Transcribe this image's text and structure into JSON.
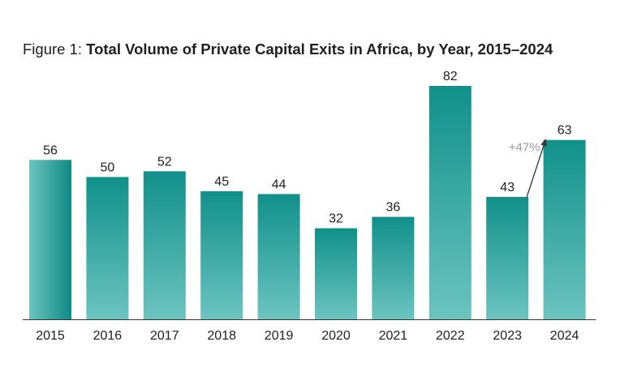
{
  "title": {
    "prefix": "Figure 1: ",
    "main": "Total Volume of Private Capital Exits in Africa, by Year, 2015–2024"
  },
  "colors": {
    "bar_top": "#11908a",
    "bar_bottom": "#6cc4c0",
    "first_bar_left": "#6cc4c0",
    "first_bar_right": "#0f8a84",
    "axis": "#333333",
    "annotation": "#9a9a9a"
  },
  "chart_data": {
    "type": "bar",
    "title": "Total Volume of Private Capital Exits in Africa, by Year, 2015–2024",
    "xlabel": "",
    "ylabel": "",
    "categories": [
      "2015",
      "2016",
      "2017",
      "2018",
      "2019",
      "2020",
      "2021",
      "2022",
      "2023",
      "2024"
    ],
    "values": [
      56,
      50,
      52,
      45,
      44,
      32,
      36,
      82,
      43,
      63
    ],
    "ylim": [
      0,
      82
    ],
    "grid": false,
    "annotations": [
      {
        "text": "+47%",
        "from": "2023",
        "to": "2024"
      }
    ]
  }
}
